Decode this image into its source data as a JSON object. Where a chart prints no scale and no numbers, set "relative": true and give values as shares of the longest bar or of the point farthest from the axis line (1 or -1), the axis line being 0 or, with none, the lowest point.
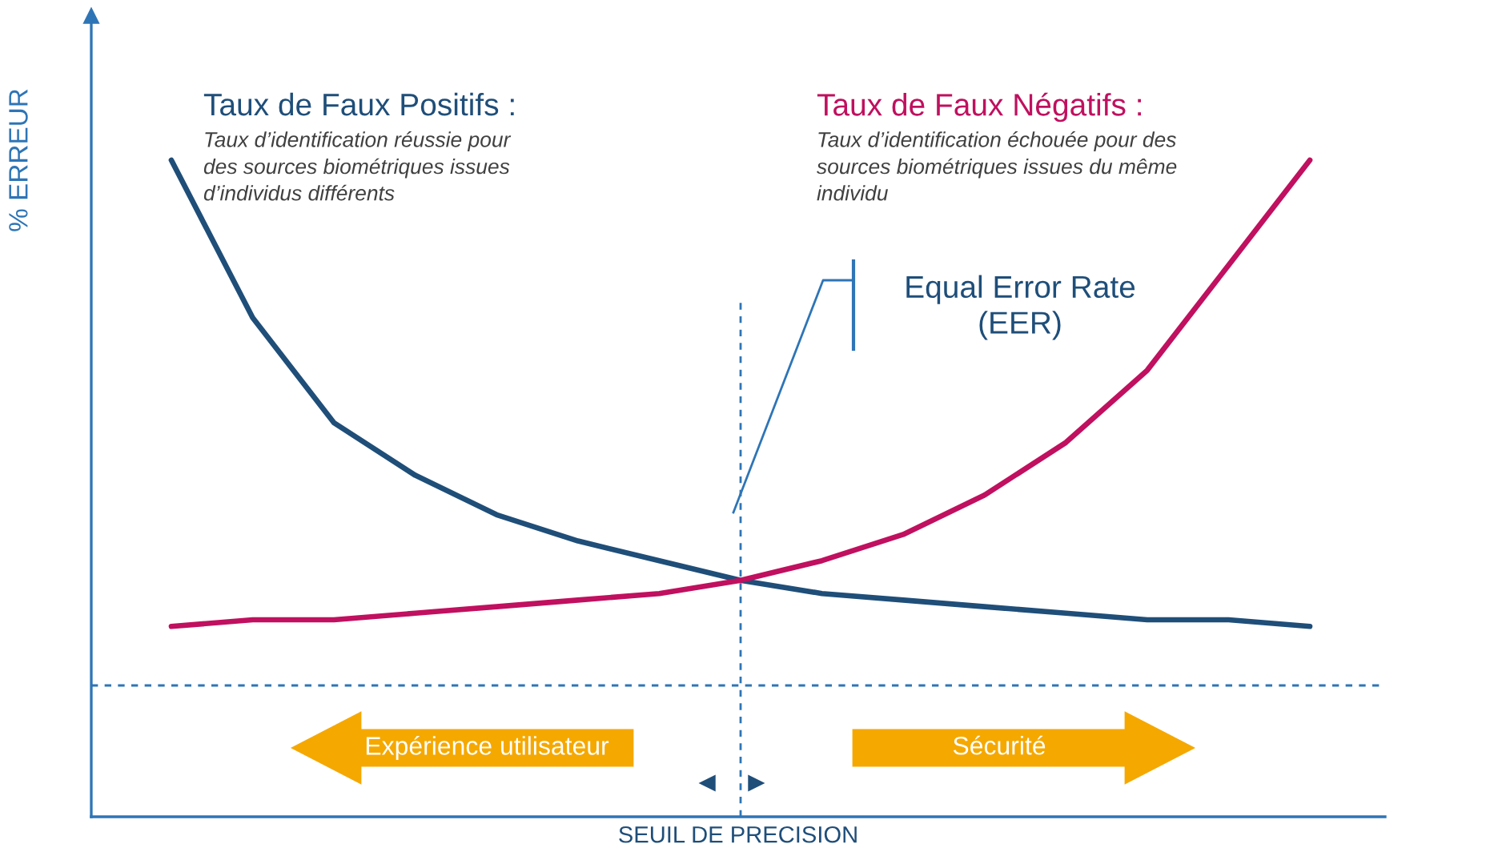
{
  "chart_data": {
    "type": "line",
    "relative": true,
    "xlabel": "SEUIL DE PRECISION",
    "ylabel": "% ERREUR",
    "categories": [
      null,
      null,
      null,
      null,
      null,
      null,
      null,
      null,
      null,
      null,
      null,
      null,
      null,
      null,
      null
    ],
    "series": [
      {
        "name": "Taux de Faux Positifs :",
        "color": "#1f4e79",
        "values": [
          1.0,
          0.76,
          0.6,
          0.52,
          0.46,
          0.42,
          0.39,
          0.36,
          0.34,
          0.33,
          0.32,
          0.31,
          0.3,
          0.3,
          0.29
        ]
      },
      {
        "name": "Taux de Faux Négatifs :",
        "color": "#c0105f",
        "values": [
          0.29,
          0.3,
          0.3,
          0.31,
          0.32,
          0.33,
          0.34,
          0.36,
          0.39,
          0.43,
          0.49,
          0.57,
          0.68,
          0.84,
          1.0
        ]
      }
    ],
    "ref_lines": [
      {
        "axis": "y",
        "value": 0.2,
        "color": "#2e75b6",
        "line_style": "dashed"
      }
    ],
    "annotations": [
      "Taux d’identification réussie pour\ndes sources biométriques issues\nd’individus différents",
      "Taux d’identification échouée pour des\nsources biométriques issues du même\nindividu",
      "Equal Error Rate\n(EER)",
      "Expérience utilisateur",
      "Sécurité"
    ]
  }
}
